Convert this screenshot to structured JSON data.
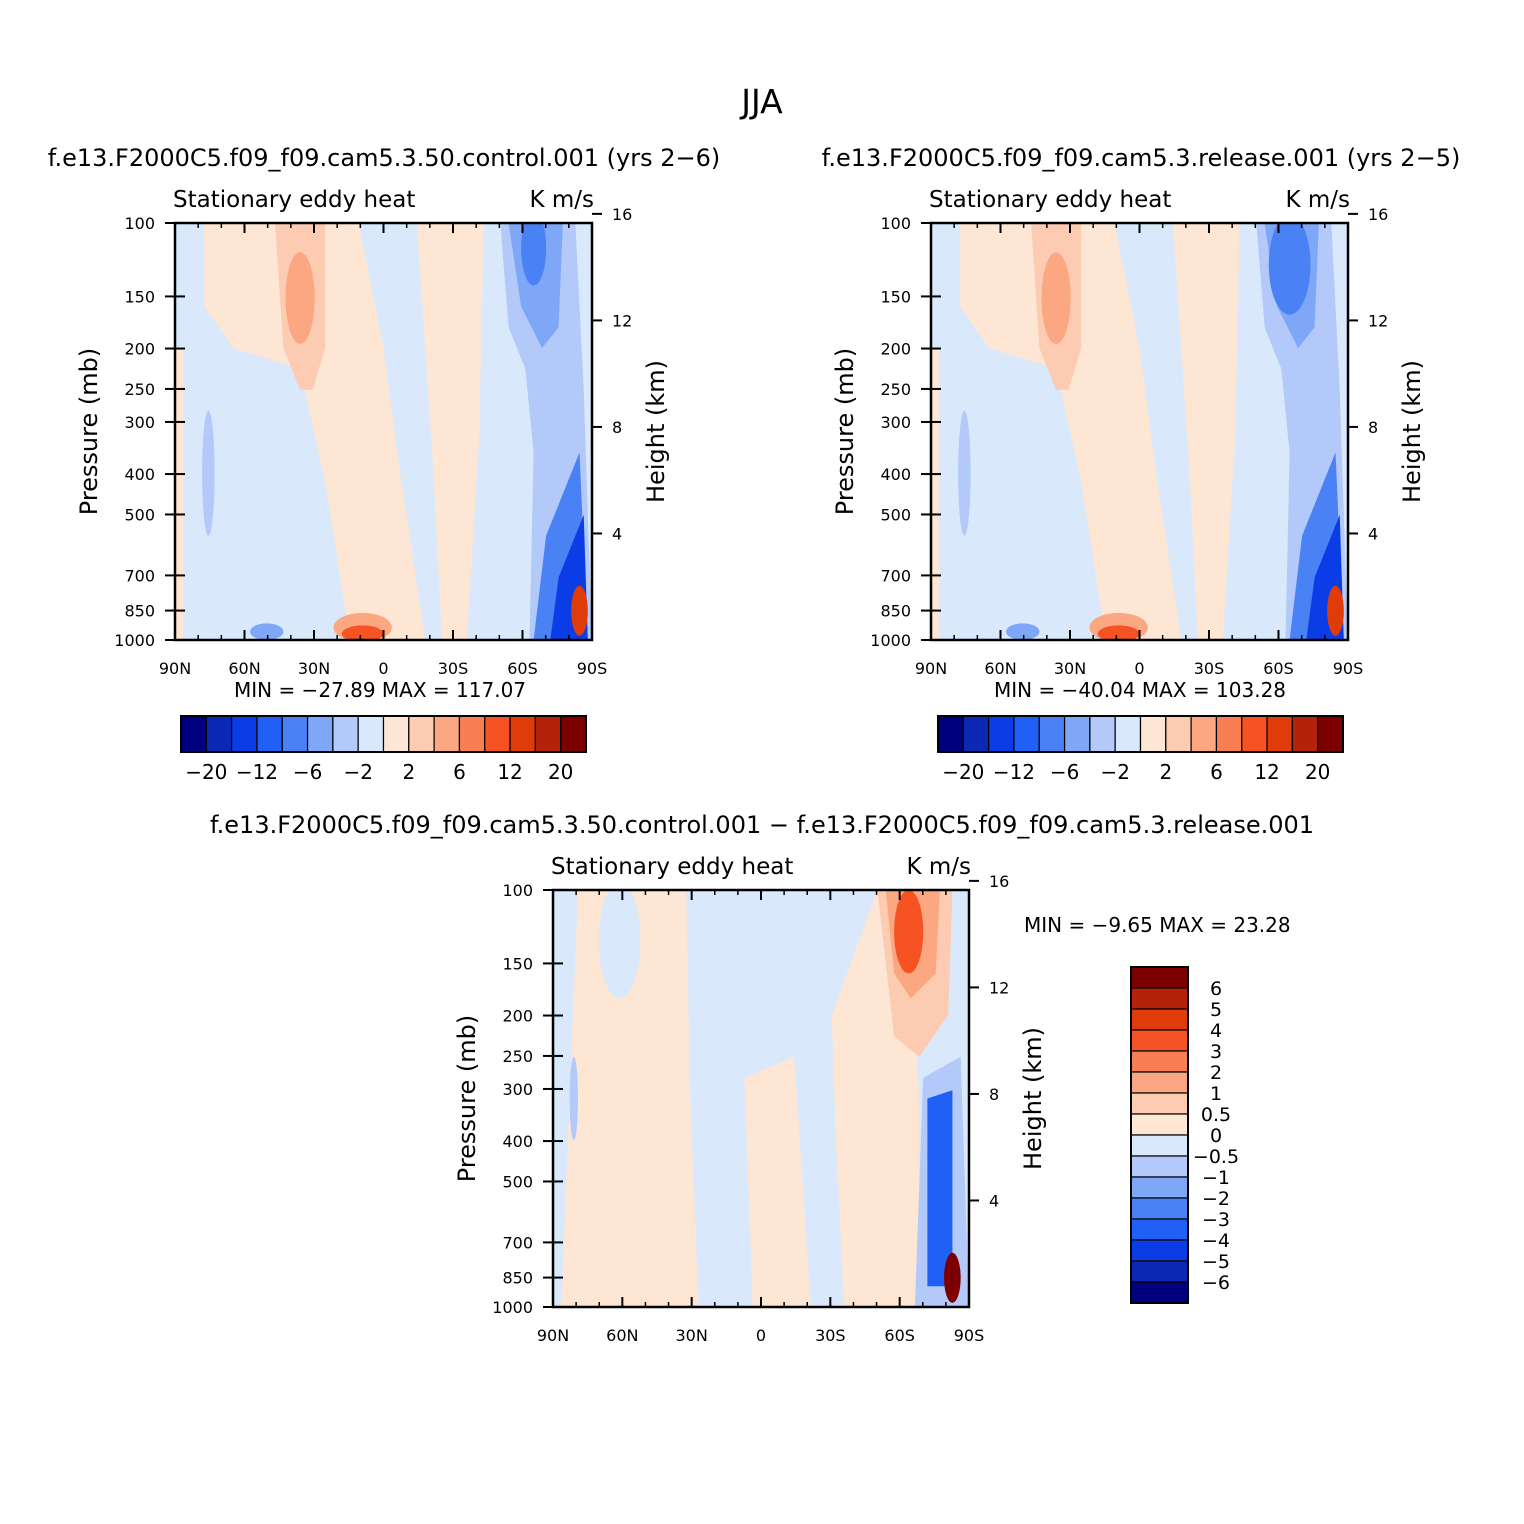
{
  "figure": {
    "main_title": "JJA",
    "colors": {
      "scale": [
        "#00007f",
        "#0a28b4",
        "#0a3de6",
        "#2060f5",
        "#4a82f5",
        "#7ea7f7",
        "#b2c9fa",
        "#d9e9fb",
        "#fde6d4",
        "#fccbb2",
        "#fba882",
        "#f87e53",
        "#f55324",
        "#e03c0a",
        "#b5220a",
        "#7c0000"
      ]
    },
    "panels": [
      {
        "id": "control",
        "run_title": "f.e13.F2000C5.f09_f09.cam5.3.50.control.001  (yrs 2−6)",
        "left_label": "Stationary eddy heat",
        "right_label": "K m/s",
        "y_axis_label": "Pressure (mb)",
        "right_axis_label": "Height (km)",
        "x_ticks": [
          "90N",
          "60N",
          "30N",
          "0",
          "30S",
          "60S",
          "90S"
        ],
        "y_ticks": [
          "100",
          "150",
          "200",
          "250",
          "300",
          "400",
          "500",
          "700",
          "850",
          "1000"
        ],
        "height_ticks": [
          "16",
          "12",
          "8",
          "4"
        ],
        "min_max": "MIN = −27.89   MAX = 117.07",
        "colorbar_labels": [
          "−20",
          "−12",
          "−6",
          "−2",
          "2",
          "6",
          "12",
          "20"
        ]
      },
      {
        "id": "release",
        "run_title": "f.e13.F2000C5.f09_f09.cam5.3.release.001  (yrs 2−5)",
        "left_label": "Stationary eddy heat",
        "right_label": "K m/s",
        "y_axis_label": "Pressure (mb)",
        "right_axis_label": "Height (km)",
        "x_ticks": [
          "90N",
          "60N",
          "30N",
          "0",
          "30S",
          "60S",
          "90S"
        ],
        "y_ticks": [
          "100",
          "150",
          "200",
          "250",
          "300",
          "400",
          "500",
          "700",
          "850",
          "1000"
        ],
        "height_ticks": [
          "16",
          "12",
          "8",
          "4"
        ],
        "min_max": "MIN = −40.04   MAX = 103.28",
        "colorbar_labels": [
          "−20",
          "−12",
          "−6",
          "−2",
          "2",
          "6",
          "12",
          "20"
        ]
      },
      {
        "id": "difference",
        "run_title": "f.e13.F2000C5.f09_f09.cam5.3.50.control.001  −  f.e13.F2000C5.f09_f09.cam5.3.release.001",
        "left_label": "Stationary eddy heat",
        "right_label": "K m/s",
        "y_axis_label": "Pressure (mb)",
        "right_axis_label": "Height (km)",
        "x_ticks": [
          "90N",
          "60N",
          "30N",
          "0",
          "30S",
          "60S",
          "90S"
        ],
        "y_ticks": [
          "100",
          "150",
          "200",
          "250",
          "300",
          "400",
          "500",
          "700",
          "850",
          "1000"
        ],
        "height_ticks": [
          "16",
          "12",
          "8",
          "4"
        ],
        "min_max": "MIN =    −9.65   MAX =    23.28",
        "colorbar_labels": [
          "6",
          "5",
          "4",
          "3",
          "2",
          "1",
          "0.5",
          "0",
          "−0.5",
          "−1",
          "−2",
          "−3",
          "−4",
          "−5",
          "−6"
        ]
      }
    ]
  },
  "chart_data": [
    {
      "type": "heatmap",
      "title": "f.e13.F2000C5.f09_f09.cam5.3.50.control.001  (yrs 2−6)",
      "subtitle": "Stationary eddy heat  K m/s",
      "xlabel": "",
      "ylabel": "Pressure (mb)",
      "y2label": "Height (km)",
      "x_range": [
        "90N",
        "90S"
      ],
      "ylim": [
        1000,
        100
      ],
      "levels": [
        -20,
        -16,
        -12,
        -8,
        -6,
        -4,
        -2,
        -0.5,
        0.5,
        2,
        4,
        6,
        8,
        12,
        16,
        20
      ],
      "min": -27.89,
      "max": 117.07
    },
    {
      "type": "heatmap",
      "title": "f.e13.F2000C5.f09_f09.cam5.3.release.001  (yrs 2−5)",
      "subtitle": "Stationary eddy heat  K m/s",
      "xlabel": "",
      "ylabel": "Pressure (mb)",
      "y2label": "Height (km)",
      "x_range": [
        "90N",
        "90S"
      ],
      "ylim": [
        1000,
        100
      ],
      "levels": [
        -20,
        -16,
        -12,
        -8,
        -6,
        -4,
        -2,
        -0.5,
        0.5,
        2,
        4,
        6,
        8,
        12,
        16,
        20
      ],
      "min": -40.04,
      "max": 103.28
    },
    {
      "type": "heatmap",
      "title": "f.e13.F2000C5.f09_f09.cam5.3.50.control.001 − f.e13.F2000C5.f09_f09.cam5.3.release.001",
      "subtitle": "Stationary eddy heat  K m/s",
      "xlabel": "",
      "ylabel": "Pressure (mb)",
      "y2label": "Height (km)",
      "x_range": [
        "90N",
        "90S"
      ],
      "ylim": [
        1000,
        100
      ],
      "levels": [
        -6,
        -5,
        -4,
        -3,
        -2,
        -1,
        -0.5,
        0,
        0.5,
        1,
        2,
        3,
        4,
        5,
        6
      ],
      "min": -9.65,
      "max": 23.28
    }
  ]
}
